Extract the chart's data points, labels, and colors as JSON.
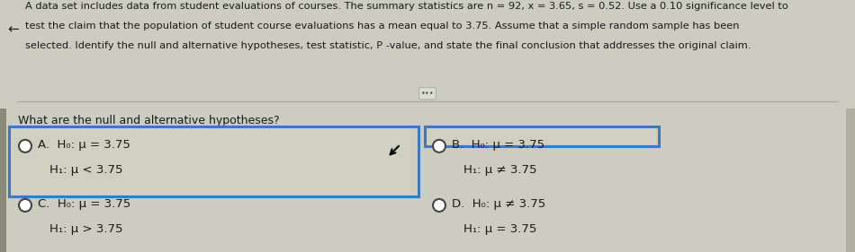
{
  "background_color": "#ccccc0",
  "header_bg": "#c8c8b8",
  "body_bg": "#d0d0c0",
  "box_A_border_color": "#3a7abf",
  "text_color": "#1a1a1a",
  "header_line1": "A data set includes data from student evaluations of courses. The summary statistics are n = 92, x = 3.65, s = 0.52. Use a 0.10 significance level to",
  "header_line2": "test the claim that the population of student course evaluations has a mean equal to 3.75. Assume that a simple random sample has been",
  "header_line3": "selected. Identify the null and alternative hypotheses, test statistic, P -value, and state the final conclusion that addresses the original claim.",
  "question": "What are the null and alternative hypotheses?",
  "opt_A_h0": "H₀: μ = 3.75",
  "opt_A_h1": "H₁: μ < 3.75",
  "opt_B_h0": "H₀: μ = 3.75",
  "opt_B_h1": "H₁: μ ≠ 3.75",
  "opt_C_h0": "H₀: μ = 3.75",
  "opt_C_h1": "H₁: μ > 3.75",
  "opt_D_h0": "H₀: μ ≠ 3.75",
  "opt_D_h1": "H₁: μ = 3.75",
  "header_fontsize": 8.2,
  "body_fontsize": 9.0,
  "option_fontsize": 9.5,
  "sidebar_color": "#8a8a7a",
  "right_bar_color": "#b0b0a0"
}
